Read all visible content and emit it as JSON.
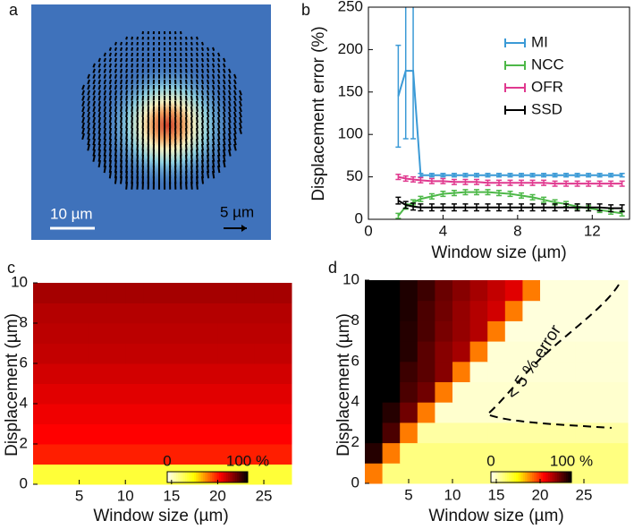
{
  "image_panel": {
    "panel_label": "a",
    "scale_bar": "10 µm",
    "vector_scale": "5 µm"
  },
  "chart_data": [
    {
      "type": "line",
      "panel_label": "b",
      "xlabel": "Window size (µm)",
      "ylabel": "Displacement error (%)",
      "xlim": [
        0,
        14
      ],
      "ylim": [
        0,
        250
      ],
      "xticks": [
        0,
        4,
        8,
        12
      ],
      "yticks": [
        0,
        50,
        100,
        150,
        200,
        250
      ],
      "x": [
        1.6,
        2.0,
        2.4,
        2.8,
        3.4,
        4.0,
        4.6,
        5.2,
        5.8,
        6.4,
        7.0,
        7.6,
        8.2,
        8.8,
        9.4,
        10.0,
        10.6,
        11.2,
        11.8,
        12.4,
        13.0,
        13.6
      ],
      "series": [
        {
          "name": "MI",
          "color": "#3b9ad6",
          "values": [
            145,
            175,
            175,
            52,
            52,
            52,
            52,
            52,
            52,
            52,
            52,
            52,
            52,
            52,
            52,
            52,
            52,
            52,
            52,
            52,
            52,
            52
          ],
          "errors": [
            60,
            80,
            80,
            2,
            2,
            2,
            2,
            2,
            2,
            2,
            2,
            2,
            2,
            2,
            2,
            2,
            2,
            2,
            2,
            2,
            2,
            2
          ]
        },
        {
          "name": "NCC",
          "color": "#4db848",
          "values": [
            4,
            15,
            20,
            24,
            27,
            30,
            31,
            32,
            32,
            32,
            31,
            30,
            28,
            26,
            23,
            20,
            18,
            15,
            13,
            11,
            9,
            7
          ],
          "errors": [
            3,
            3,
            3,
            3,
            3,
            3,
            3,
            3,
            3,
            3,
            3,
            3,
            3,
            3,
            3,
            3,
            3,
            3,
            3,
            3,
            3,
            3
          ]
        },
        {
          "name": "OFR",
          "color": "#e0398f",
          "values": [
            50,
            48,
            47,
            46,
            45,
            45,
            44,
            44,
            44,
            43,
            43,
            43,
            43,
            43,
            43,
            42,
            42,
            42,
            42,
            42,
            42,
            42
          ],
          "errors": [
            3,
            3,
            3,
            3,
            3,
            3,
            3,
            3,
            3,
            3,
            3,
            3,
            3,
            3,
            3,
            3,
            3,
            3,
            3,
            3,
            3,
            3
          ]
        },
        {
          "name": "SSD",
          "color": "#000000",
          "values": [
            22,
            17,
            15,
            14,
            14,
            14,
            14,
            14,
            14,
            14,
            14,
            14,
            14,
            14,
            14,
            14,
            14,
            14,
            14,
            14,
            13,
            13
          ],
          "errors": [
            4,
            4,
            4,
            4,
            4,
            4,
            4,
            4,
            4,
            4,
            4,
            4,
            4,
            4,
            4,
            4,
            4,
            4,
            4,
            4,
            4,
            4
          ]
        }
      ]
    },
    {
      "type": "heatmap",
      "panel_label": "c",
      "xlabel": "Window size (µm)",
      "ylabel": "Displacement (µm)",
      "xlim": [
        0,
        28
      ],
      "ylim": [
        0,
        10
      ],
      "xticks": [
        5,
        10,
        15,
        20,
        25
      ],
      "yticks": [
        0,
        2,
        4,
        6,
        8,
        10
      ],
      "x": [
        1,
        3,
        5,
        7,
        9,
        11,
        13,
        15,
        17,
        19,
        21,
        23,
        25,
        27
      ],
      "y": [
        0.5,
        1.5,
        2.5,
        3.5,
        4.5,
        5.5,
        6.5,
        7.5,
        8.5,
        9.5
      ],
      "z": [
        [
          25,
          25,
          25,
          25,
          25,
          25,
          25,
          25,
          25,
          25,
          25,
          25,
          25,
          25
        ],
        [
          62,
          62,
          62,
          62,
          62,
          62,
          62,
          62,
          62,
          62,
          62,
          62,
          62,
          62
        ],
        [
          66,
          66,
          66,
          66,
          66,
          66,
          66,
          66,
          66,
          66,
          66,
          66,
          66,
          66
        ],
        [
          68,
          68,
          68,
          68,
          68,
          68,
          68,
          68,
          68,
          68,
          68,
          68,
          68,
          68
        ],
        [
          70,
          70,
          70,
          70,
          70,
          70,
          70,
          70,
          70,
          70,
          70,
          70,
          70,
          70
        ],
        [
          72,
          72,
          72,
          72,
          72,
          72,
          72,
          72,
          72,
          72,
          72,
          72,
          72,
          72
        ],
        [
          74,
          74,
          74,
          74,
          74,
          74,
          74,
          74,
          74,
          74,
          74,
          74,
          74,
          74
        ],
        [
          75,
          75,
          75,
          75,
          75,
          75,
          75,
          75,
          75,
          75,
          75,
          75,
          75,
          75
        ],
        [
          76,
          76,
          76,
          76,
          76,
          76,
          76,
          76,
          76,
          76,
          76,
          76,
          76,
          76
        ],
        [
          78,
          78,
          78,
          78,
          78,
          78,
          78,
          78,
          78,
          78,
          78,
          78,
          78,
          78
        ]
      ],
      "colorbar": {
        "lim": [
          0,
          100
        ],
        "ticks": [
          0,
          {
            "value": 100,
            "label": "100 %"
          }
        ]
      }
    },
    {
      "type": "heatmap",
      "panel_label": "d",
      "xlabel": "Window size (µm)",
      "ylabel": "Displacement (µm)",
      "xlim": [
        0,
        30
      ],
      "ylim": [
        0,
        10
      ],
      "xticks": [
        5,
        10,
        15,
        20,
        25
      ],
      "yticks": [
        0,
        2,
        4,
        6,
        8,
        10
      ],
      "x": [
        1,
        3,
        5,
        7,
        9,
        11,
        13,
        15,
        17,
        19,
        21,
        23,
        25,
        27,
        29
      ],
      "y": [
        0.5,
        1.5,
        2.5,
        3.5,
        4.5,
        5.5,
        6.5,
        7.5,
        8.5,
        9.5
      ],
      "z": [
        [
          50,
          15,
          15,
          15,
          15,
          15,
          15,
          15,
          15,
          15,
          15,
          15,
          15,
          15,
          15
        ],
        [
          95,
          50,
          15,
          15,
          15,
          15,
          15,
          15,
          15,
          15,
          15,
          15,
          15,
          15,
          15
        ],
        [
          100,
          90,
          50,
          10,
          10,
          10,
          10,
          10,
          10,
          10,
          10,
          10,
          10,
          10,
          10
        ],
        [
          100,
          95,
          85,
          50,
          4,
          4,
          4,
          4,
          4,
          4,
          4,
          4,
          4,
          4,
          4
        ],
        [
          100,
          100,
          90,
          85,
          50,
          4,
          4,
          4,
          4,
          4,
          4,
          4,
          4,
          4,
          4
        ],
        [
          100,
          100,
          92,
          88,
          82,
          50,
          3,
          3,
          3,
          3,
          3,
          3,
          3,
          3,
          3
        ],
        [
          100,
          100,
          95,
          88,
          82,
          78,
          50,
          3,
          3,
          3,
          3,
          3,
          3,
          3,
          3
        ],
        [
          100,
          100,
          95,
          90,
          84,
          80,
          76,
          50,
          2,
          2,
          2,
          2,
          2,
          2,
          2
        ],
        [
          100,
          100,
          96,
          90,
          85,
          80,
          76,
          72,
          50,
          2,
          2,
          2,
          2,
          2,
          2
        ],
        [
          100,
          100,
          96,
          92,
          86,
          82,
          78,
          74,
          70,
          50,
          2,
          2,
          2,
          2,
          2
        ]
      ],
      "annotation": "< 5 % error",
      "colorbar": {
        "lim": [
          0,
          100
        ],
        "ticks": [
          0,
          {
            "value": 100,
            "label": "100 %"
          }
        ]
      }
    }
  ]
}
